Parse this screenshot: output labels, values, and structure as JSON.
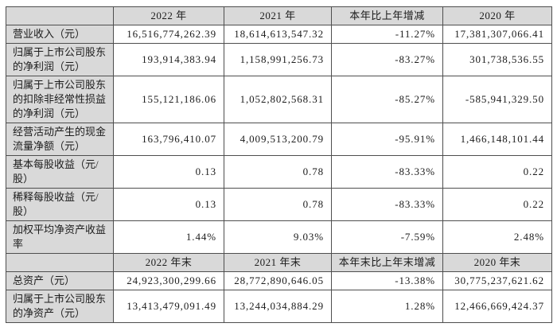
{
  "colors": {
    "header_bg": "#d9d9d9",
    "label_bg": "#d9d9d9",
    "border_color": "#4e4e4e",
    "text_color": "#1c1c1c",
    "page_bg": "#ffffff"
  },
  "table": {
    "header_row_1": [
      "",
      "2022 年",
      "2021 年",
      "本年比上年增减",
      "2020 年"
    ],
    "body_rows_1": [
      {
        "label": "营业收入（元）",
        "y2022": "16,516,774,262.39",
        "y2021": "18,614,613,547.32",
        "change": "-11.27%",
        "y2020": "17,381,307,066.41"
      },
      {
        "label": "归属于上市公司股东的净利润（元）",
        "y2022": "193,914,383.94",
        "y2021": "1,158,991,256.73",
        "change": "-83.27%",
        "y2020": "301,738,536.55"
      },
      {
        "label": "归属于上市公司股东的扣除非经常性损益的净利润（元）",
        "y2022": "155,121,186.06",
        "y2021": "1,052,802,568.31",
        "change": "-85.27%",
        "y2020": "-585,941,329.50"
      },
      {
        "label": "经营活动产生的现金流量净额（元）",
        "y2022": "163,796,410.07",
        "y2021": "4,009,513,200.79",
        "change": "-95.91%",
        "y2020": "1,466,148,101.44"
      },
      {
        "label": "基本每股收益（元/股）",
        "y2022": "0.13",
        "y2021": "0.78",
        "change": "-83.33%",
        "y2020": "0.22"
      },
      {
        "label": "稀释每股收益（元/股）",
        "y2022": "0.13",
        "y2021": "0.78",
        "change": "-83.33%",
        "y2020": "0.22"
      },
      {
        "label": "加权平均净资产收益率",
        "y2022": "1.44%",
        "y2021": "9.03%",
        "change": "-7.59%",
        "y2020": "2.48%"
      }
    ],
    "header_row_2": [
      "",
      "2022 年末",
      "2021 年末",
      "本年末比上年末增减",
      "2020 年末"
    ],
    "body_rows_2": [
      {
        "label": "总资产（元）",
        "y2022": "24,923,300,299.66",
        "y2021": "28,772,890,646.05",
        "change": "-13.38%",
        "y2020": "30,775,237,621.62"
      },
      {
        "label": "归属于上市公司股东的净资产（元）",
        "y2022": "13,413,479,091.49",
        "y2021": "13,244,034,884.29",
        "change": "1.28%",
        "y2020": "12,466,669,424.37"
      }
    ]
  }
}
